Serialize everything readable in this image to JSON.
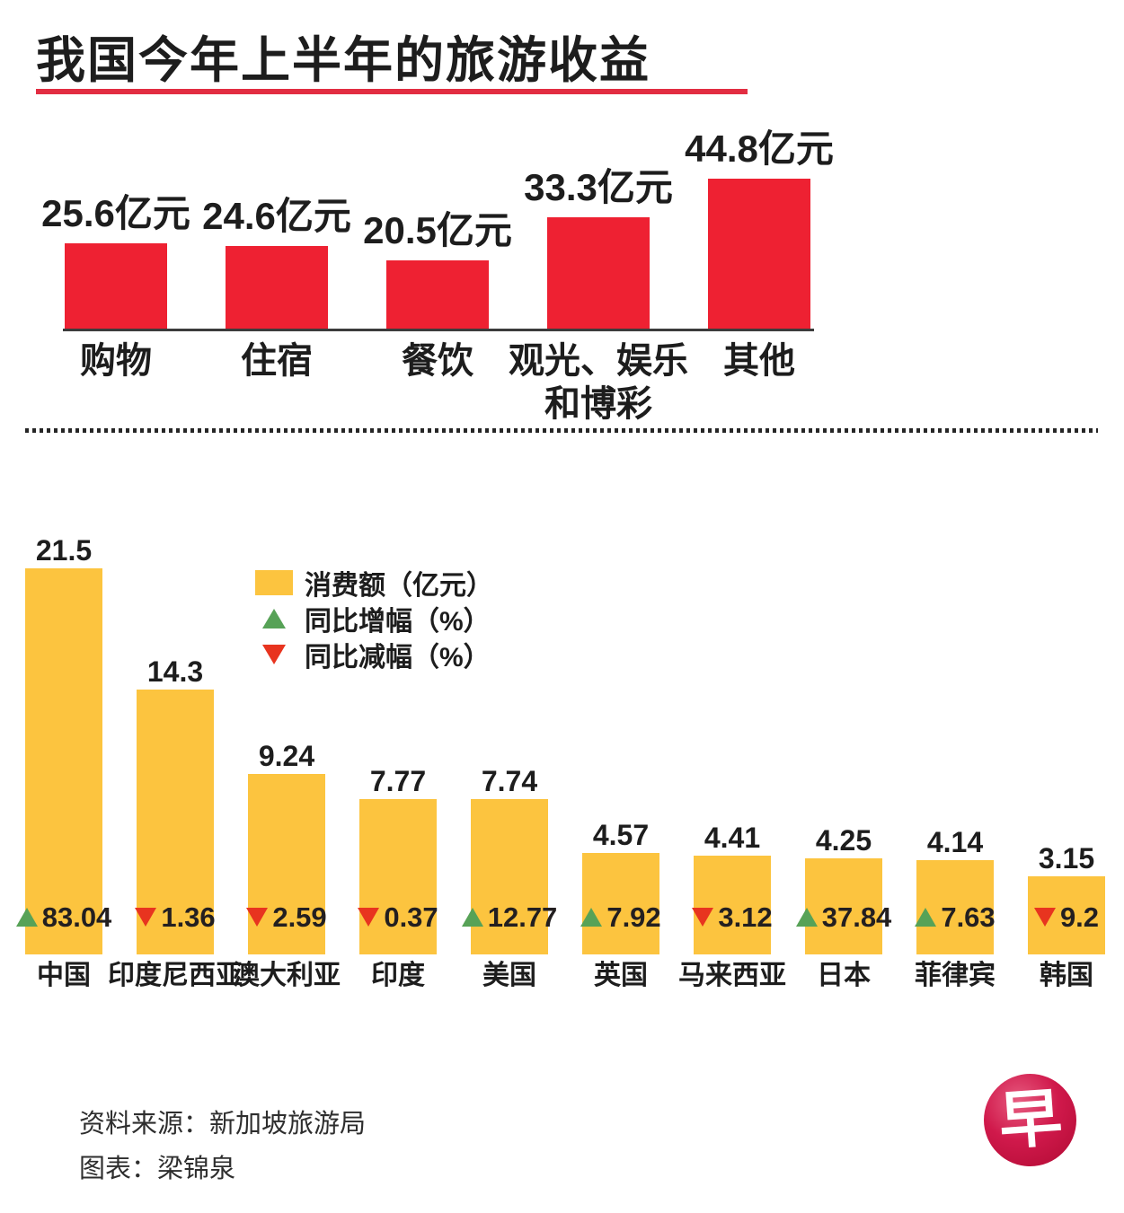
{
  "title": "我国今年上半年的旅游收益",
  "colors": {
    "bar_red": "#ee2132",
    "title_underline_red": "#e22d42",
    "bar_yellow": "#fcc43f",
    "increase_green": "#57a257",
    "decrease_red": "#e8341f",
    "text_black": "#1d1d1d",
    "logo_red": "#c40e35"
  },
  "chart_data": [
    {
      "type": "bar",
      "name": "tourism-revenue-by-category",
      "title": "我国今年上半年的旅游收益",
      "unit": "亿元",
      "categories": [
        "购物",
        "住宿",
        "餐饮",
        "观光、娱乐\n和博彩",
        "其他"
      ],
      "values": [
        25.6,
        24.6,
        20.5,
        33.3,
        44.8
      ],
      "value_labels": [
        "25.6亿元",
        "24.6亿元",
        "20.5亿元",
        "33.3亿元",
        "44.8亿元"
      ],
      "bar_color": "#ee2132",
      "ylim": [
        0,
        48
      ],
      "grid": false,
      "axis_line": "bottom"
    },
    {
      "type": "bar",
      "name": "visitor-spending-by-country",
      "unit": "亿元",
      "categories": [
        "中国",
        "印度尼西亚",
        "澳大利亚",
        "印度",
        "美国",
        "英国",
        "马来西亚",
        "日本",
        "菲律宾",
        "韩国"
      ],
      "values": [
        21.5,
        14.3,
        9.24,
        7.77,
        7.74,
        4.57,
        4.41,
        4.25,
        4.14,
        3.15
      ],
      "value_labels": [
        "21.5",
        "14.3",
        "9.24",
        "7.77",
        "7.74",
        "4.57",
        "4.41",
        "4.25",
        "4.14",
        "3.15"
      ],
      "yoy_change": [
        {
          "direction": "up",
          "label": "83.04"
        },
        {
          "direction": "down",
          "label": "1.36"
        },
        {
          "direction": "down",
          "label": "2.59"
        },
        {
          "direction": "down",
          "label": "0.37"
        },
        {
          "direction": "up",
          "label": "12.77"
        },
        {
          "direction": "up",
          "label": "7.92"
        },
        {
          "direction": "down",
          "label": "3.12"
        },
        {
          "direction": "up",
          "label": "37.84"
        },
        {
          "direction": "up",
          "label": "7.63"
        },
        {
          "direction": "down",
          "label": "9.2"
        }
      ],
      "legend": [
        {
          "marker": "square",
          "color": "#fcc43f",
          "label": "消费额（亿元）"
        },
        {
          "marker": "triangle-up",
          "color": "#57a257",
          "label": "同比增幅（%）"
        },
        {
          "marker": "triangle-down",
          "color": "#e8341f",
          "label": "同比减幅（%）"
        }
      ],
      "legend_position": "upper-left-inside",
      "bar_color": "#fcc43f",
      "ylim": [
        0,
        23
      ],
      "grid": false,
      "axis_line": "none"
    }
  ],
  "footer": {
    "source": "资料来源：新加坡旅游局",
    "credit": "图表：梁锦泉",
    "logo_char": "早"
  }
}
